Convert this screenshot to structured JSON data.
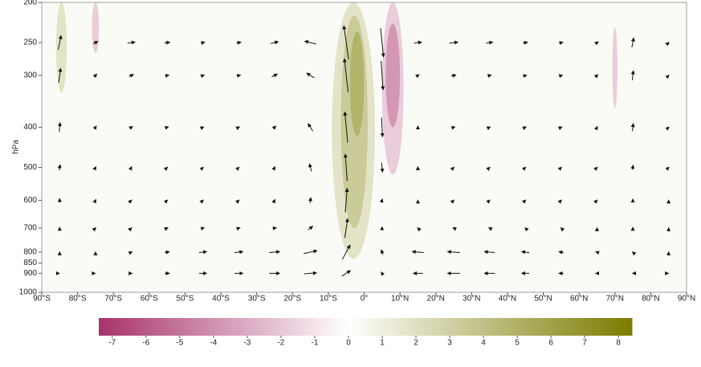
{
  "chart_data": {
    "type": "vector-section",
    "y_label": "hPa",
    "xlim": [
      -90,
      90
    ],
    "xticks": [
      {
        "value": -90,
        "label": "90°S"
      },
      {
        "value": -80,
        "label": "80°S"
      },
      {
        "value": -70,
        "label": "70°S"
      },
      {
        "value": -60,
        "label": "60°S"
      },
      {
        "value": -50,
        "label": "50°S"
      },
      {
        "value": -40,
        "label": "40°S"
      },
      {
        "value": -30,
        "label": "30°S"
      },
      {
        "value": -20,
        "label": "20°S"
      },
      {
        "value": -10,
        "label": "10°S"
      },
      {
        "value": 0,
        "label": "0°"
      },
      {
        "value": 10,
        "label": "10°N"
      },
      {
        "value": 20,
        "label": "20°N"
      },
      {
        "value": 30,
        "label": "30°N"
      },
      {
        "value": 40,
        "label": "40°N"
      },
      {
        "value": 50,
        "label": "50°N"
      },
      {
        "value": 60,
        "label": "60°N"
      },
      {
        "value": 70,
        "label": "70°N"
      },
      {
        "value": 80,
        "label": "80°N"
      },
      {
        "value": 90,
        "label": "90°N"
      }
    ],
    "ylim": [
      1000,
      200
    ],
    "y_log": true,
    "yticks": [
      200,
      250,
      300,
      400,
      500,
      600,
      700,
      800,
      850,
      900,
      1000
    ],
    "cmap": {
      "low": "#a8336b",
      "mid": "#ffffff",
      "high": "#7b7c00"
    },
    "clim": [
      -7.4,
      8.4
    ],
    "cticks": [
      -7,
      -6,
      -5,
      -4,
      -3,
      -2,
      -1,
      0,
      1,
      2,
      3,
      4,
      5,
      6,
      7,
      8
    ],
    "background_value": 0.3,
    "shading": [
      {
        "lat": [
          -9,
          3
        ],
        "p": [
          200,
          830
        ],
        "value": 2
      },
      {
        "lat": [
          -6.5,
          1
        ],
        "p": [
          215,
          700
        ],
        "value": 3.5
      },
      {
        "lat": [
          -4,
          0
        ],
        "p": [
          235,
          420
        ],
        "value": 5
      },
      {
        "lat": [
          5,
          11
        ],
        "p": [
          200,
          520
        ],
        "value": -2
      },
      {
        "lat": [
          6,
          10
        ],
        "p": [
          225,
          400
        ],
        "value": -4
      },
      {
        "lat": [
          -86,
          -83
        ],
        "p": [
          200,
          330
        ],
        "value": 2
      },
      {
        "lat": [
          -76,
          -74
        ],
        "p": [
          200,
          265
        ],
        "value": -2
      },
      {
        "lat": [
          69.3,
          70.7
        ],
        "p": [
          230,
          360
        ],
        "value": -2
      }
    ],
    "vectors": {
      "lats": [
        -85,
        -75,
        -65,
        -55,
        -45,
        -35,
        -25,
        -15,
        -5,
        5,
        15,
        25,
        35,
        45,
        55,
        65,
        75,
        85
      ],
      "levels": [
        250,
        300,
        400,
        500,
        600,
        700,
        800,
        900
      ],
      "u": [
        [
          0.3,
          0.5,
          0.8,
          0.6,
          0.4,
          0.5,
          0.8,
          -1.2,
          -0.5,
          0.3,
          0.8,
          0.9,
          0.7,
          0.5,
          0.4,
          0.3,
          0.2,
          0.1
        ],
        [
          0.2,
          0.3,
          0.5,
          0.4,
          0.3,
          0.4,
          0.6,
          -0.8,
          -0.4,
          0.2,
          0.3,
          0.5,
          0.4,
          0.3,
          0.3,
          0.2,
          0.1,
          0.1
        ],
        [
          0.1,
          0.2,
          0.3,
          0.3,
          0.2,
          0.2,
          0.3,
          -0.5,
          -0.3,
          0.1,
          0,
          0.3,
          0.2,
          0.2,
          0.2,
          0.1,
          0.1,
          0.1
        ],
        [
          0.1,
          0.1,
          0.1,
          0.1,
          0.1,
          0.1,
          0.1,
          -0.2,
          -0.2,
          0.1,
          0,
          0.1,
          0.1,
          0.1,
          0.1,
          0.1,
          0.1,
          0.1
        ],
        [
          0,
          0.1,
          0.1,
          0.1,
          0.1,
          0.1,
          0.1,
          0.1,
          0.2,
          0.1,
          0,
          0.1,
          0.1,
          0.1,
          0.1,
          0.1,
          0,
          0
        ],
        [
          0,
          0.1,
          0.1,
          0.2,
          0.3,
          0.3,
          0.4,
          0.5,
          0.3,
          0,
          -0.1,
          -0.2,
          -0.2,
          -0.1,
          -0.1,
          0,
          0,
          0
        ],
        [
          0,
          0,
          0.2,
          0.5,
          0.8,
          0.9,
          1.1,
          1.4,
          0.8,
          -0.2,
          -1.2,
          -1.3,
          -1.1,
          -0.8,
          -0.5,
          -0.3,
          -0.1,
          0
        ],
        [
          0,
          0,
          0.2,
          0.5,
          0.8,
          0.9,
          1.1,
          1.3,
          0.9,
          -0.2,
          -1.0,
          -1.3,
          -1.1,
          -0.8,
          -0.5,
          -0.3,
          -0.1,
          0
        ]
      ],
      "w": [
        [
          1.5,
          0.3,
          0.1,
          0.1,
          0.1,
          0.1,
          0.2,
          0.3,
          3.5,
          -3,
          0.1,
          0.1,
          0.1,
          0.1,
          0.1,
          0.2,
          1,
          0.1
        ],
        [
          1.5,
          0.3,
          0.2,
          0.1,
          0.1,
          0.1,
          0.3,
          0.5,
          3.5,
          -3,
          0.2,
          0.1,
          0.1,
          0.1,
          0.1,
          0.2,
          1,
          0.1
        ],
        [
          1,
          0.3,
          0.2,
          0.1,
          0.1,
          0.1,
          0.3,
          0.8,
          3.2,
          -2,
          0.3,
          0.1,
          0.1,
          0.1,
          0.1,
          0.2,
          0.8,
          0.1
        ],
        [
          0.6,
          0.2,
          0.2,
          0.1,
          0.1,
          0.1,
          0.2,
          0.8,
          2.8,
          -1,
          0.2,
          0.1,
          0.1,
          0.1,
          0.1,
          0.1,
          0.5,
          0.1
        ],
        [
          0.4,
          0.2,
          0.1,
          0.1,
          0.1,
          0.1,
          0.2,
          0.6,
          2.5,
          0.3,
          0.1,
          0.1,
          0.1,
          0.1,
          0.1,
          0.1,
          0.3,
          0.1
        ],
        [
          0.2,
          0.1,
          0.1,
          0.1,
          0.1,
          0.1,
          0.1,
          0.4,
          2,
          0.3,
          0.1,
          0.1,
          0.1,
          0.1,
          0.1,
          0.1,
          0.2,
          0.1
        ],
        [
          0.1,
          0.1,
          0.1,
          0.1,
          0.1,
          0.1,
          0.1,
          0.3,
          1.5,
          0.5,
          0.1,
          0.1,
          0.1,
          0.1,
          0.1,
          0.1,
          0.1,
          0.1
        ],
        [
          0,
          0,
          0,
          0,
          0,
          0,
          0,
          0.1,
          0.6,
          0.3,
          0,
          0,
          0,
          0,
          0,
          0,
          0,
          0
        ]
      ]
    }
  }
}
